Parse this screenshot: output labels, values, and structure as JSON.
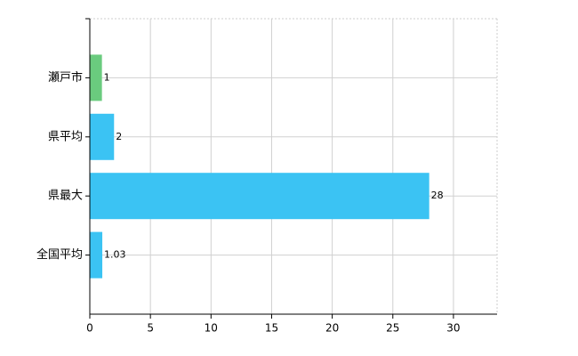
{
  "chart_data": {
    "type": "barh",
    "categories": [
      "瀬戸市",
      "県平均",
      "県最大",
      "全国平均"
    ],
    "values": [
      1,
      2,
      28,
      1.03
    ],
    "colors": [
      "#6acb7e",
      "#3bc3f3",
      "#3bc3f3",
      "#3bc3f3"
    ],
    "xlim": [
      0,
      33.6
    ],
    "xticks": [
      0,
      5,
      10,
      15,
      20,
      25,
      30
    ],
    "grid": true
  }
}
